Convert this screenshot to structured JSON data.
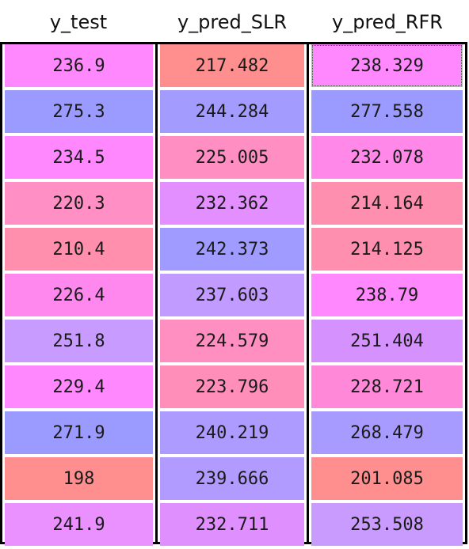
{
  "columns": [
    {
      "header": "y_test",
      "cells": [
        {
          "value": "236.9",
          "color": "#ff88ff"
        },
        {
          "value": "275.3",
          "color": "#9b9bff"
        },
        {
          "value": "234.5",
          "color": "#ff88ff"
        },
        {
          "value": "220.3",
          "color": "#ff8fc4"
        },
        {
          "value": "210.4",
          "color": "#ff8fac"
        },
        {
          "value": "226.4",
          "color": "#ff88ef"
        },
        {
          "value": "251.8",
          "color": "#c79bff"
        },
        {
          "value": "229.4",
          "color": "#ff88ff"
        },
        {
          "value": "271.9",
          "color": "#9b9bff"
        },
        {
          "value": "198",
          "color": "#ff8e8e"
        },
        {
          "value": "241.9",
          "color": "#ea90ff"
        }
      ]
    },
    {
      "header": "y_pred_SLR",
      "cells": [
        {
          "value": "217.482",
          "color": "#ff8e8e"
        },
        {
          "value": "244.284",
          "color": "#a49bff"
        },
        {
          "value": "225.005",
          "color": "#ff8fc2"
        },
        {
          "value": "232.362",
          "color": "#e38fff"
        },
        {
          "value": "242.373",
          "color": "#a09bff"
        },
        {
          "value": "237.603",
          "color": "#c19bff"
        },
        {
          "value": "224.579",
          "color": "#ff8fc0"
        },
        {
          "value": "223.796",
          "color": "#ff8fb8"
        },
        {
          "value": "240.219",
          "color": "#ae9bff"
        },
        {
          "value": "239.666",
          "color": "#b29bff"
        },
        {
          "value": "232.711",
          "color": "#e08fff"
        }
      ]
    },
    {
      "header": "y_pred_RFR",
      "cells": [
        {
          "value": "238.329",
          "color": "#ff88ff"
        },
        {
          "value": "277.558",
          "color": "#9b9bff"
        },
        {
          "value": "232.078",
          "color": "#ff88e8"
        },
        {
          "value": "214.164",
          "color": "#ff8fae"
        },
        {
          "value": "214.125",
          "color": "#ff8fae"
        },
        {
          "value": "238.79",
          "color": "#ff88ff"
        },
        {
          "value": "251.404",
          "color": "#d592ff"
        },
        {
          "value": "228.721",
          "color": "#ff88d8"
        },
        {
          "value": "268.479",
          "color": "#a89bff"
        },
        {
          "value": "201.085",
          "color": "#ff8e8e"
        },
        {
          "value": "253.508",
          "color": "#c99bff"
        }
      ]
    }
  ]
}
